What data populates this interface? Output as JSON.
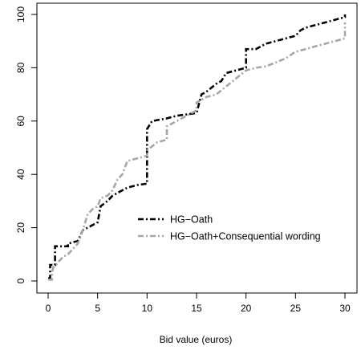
{
  "chart_data": {
    "type": "line",
    "step": true,
    "title": "",
    "xlabel": "Bid value (euros)",
    "ylabel": "",
    "xlim": [
      0,
      30
    ],
    "ylim": [
      0,
      100
    ],
    "xticks": [
      0,
      5,
      10,
      15,
      20,
      25,
      30
    ],
    "yticks": [
      0,
      20,
      40,
      60,
      80,
      100
    ],
    "grid": false,
    "legend_position": "center-right",
    "series": [
      {
        "name": "HG−Oath",
        "color": "#000000",
        "line_style": "dash-dot",
        "points": [
          [
            0,
            1
          ],
          [
            0.2,
            1
          ],
          [
            0.2,
            6
          ],
          [
            0.7,
            6
          ],
          [
            0.7,
            13
          ],
          [
            2,
            13
          ],
          [
            2,
            14
          ],
          [
            3,
            15
          ],
          [
            3.5,
            19
          ],
          [
            4,
            20
          ],
          [
            4.5,
            21
          ],
          [
            5,
            22
          ],
          [
            5.3,
            28
          ],
          [
            6,
            30
          ],
          [
            6.5,
            32
          ],
          [
            7,
            33
          ],
          [
            8,
            35
          ],
          [
            9,
            36
          ],
          [
            10,
            36.5
          ],
          [
            10,
            57
          ],
          [
            10.5,
            60
          ],
          [
            12,
            61
          ],
          [
            13,
            62
          ],
          [
            14,
            62.5
          ],
          [
            15,
            63
          ],
          [
            15.5,
            70
          ],
          [
            16,
            71
          ],
          [
            17,
            74
          ],
          [
            17.5,
            75
          ],
          [
            18,
            78
          ],
          [
            19,
            79
          ],
          [
            20,
            80
          ],
          [
            20,
            87
          ],
          [
            21,
            87
          ],
          [
            21.5,
            88
          ],
          [
            22,
            89
          ],
          [
            23,
            90
          ],
          [
            24,
            91
          ],
          [
            25,
            92
          ],
          [
            25.5,
            94
          ],
          [
            26,
            95
          ],
          [
            27,
            96
          ],
          [
            28,
            97
          ],
          [
            29,
            98
          ],
          [
            30,
            99
          ],
          [
            30,
            100
          ]
        ]
      },
      {
        "name": "HG−Oath+Consequential wording",
        "color": "#a6a6a6",
        "line_style": "dash-dot",
        "points": [
          [
            0,
            0.5
          ],
          [
            0.4,
            0.5
          ],
          [
            0.4,
            3
          ],
          [
            0.5,
            5
          ],
          [
            0.8,
            6
          ],
          [
            1,
            7
          ],
          [
            1.5,
            9
          ],
          [
            2,
            10
          ],
          [
            2.5,
            12
          ],
          [
            3,
            14
          ],
          [
            3.5,
            19
          ],
          [
            4,
            25
          ],
          [
            4.5,
            27
          ],
          [
            5,
            28
          ],
          [
            5.3,
            31
          ],
          [
            6,
            32
          ],
          [
            6.5,
            34
          ],
          [
            7,
            38
          ],
          [
            7.5,
            40
          ],
          [
            8,
            45
          ],
          [
            9,
            46
          ],
          [
            10,
            47
          ],
          [
            10,
            49
          ],
          [
            11,
            52
          ],
          [
            12,
            53
          ],
          [
            12,
            58
          ],
          [
            13,
            60
          ],
          [
            14,
            62
          ],
          [
            15,
            64
          ],
          [
            15,
            67
          ],
          [
            16,
            69
          ],
          [
            17,
            70
          ],
          [
            18,
            73
          ],
          [
            19,
            76
          ],
          [
            20,
            79
          ],
          [
            21,
            80
          ],
          [
            22,
            80.5
          ],
          [
            23,
            82
          ],
          [
            24,
            83.5
          ],
          [
            25,
            86
          ],
          [
            26,
            87
          ],
          [
            27,
            88
          ],
          [
            28,
            89
          ],
          [
            29,
            90
          ],
          [
            30,
            91
          ],
          [
            30,
            97
          ]
        ]
      }
    ]
  }
}
